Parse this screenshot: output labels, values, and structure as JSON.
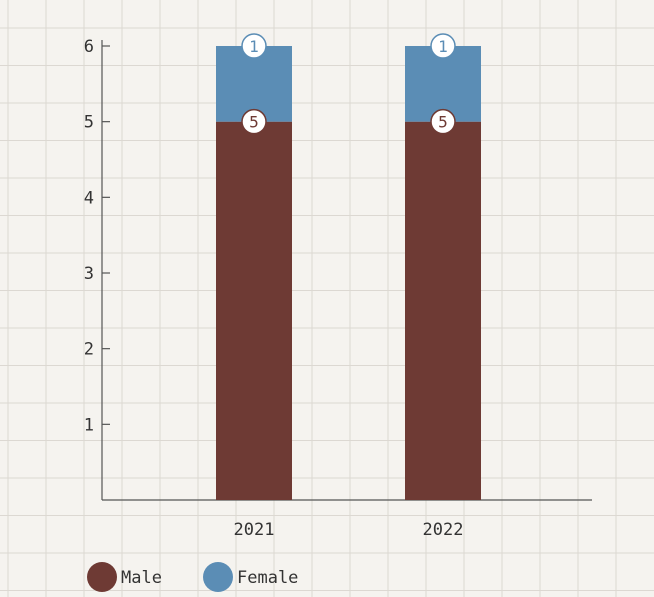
{
  "chart_data": {
    "type": "bar",
    "stacked": true,
    "categories": [
      "2021",
      "2022"
    ],
    "series": [
      {
        "name": "Male",
        "values": [
          5,
          5
        ],
        "color": "#6e3a34"
      },
      {
        "name": "Female",
        "values": [
          1,
          1
        ],
        "color": "#5b8db5"
      }
    ],
    "title": "",
    "xlabel": "",
    "ylabel": "",
    "ylim": [
      0,
      6
    ],
    "yticks": [
      1,
      2,
      3,
      4,
      5,
      6
    ],
    "grid": true,
    "legend": "bottom-left",
    "background_color": "#f5f3ef",
    "grid_color": "#dcd8d2",
    "axis_color": "#555555"
  }
}
